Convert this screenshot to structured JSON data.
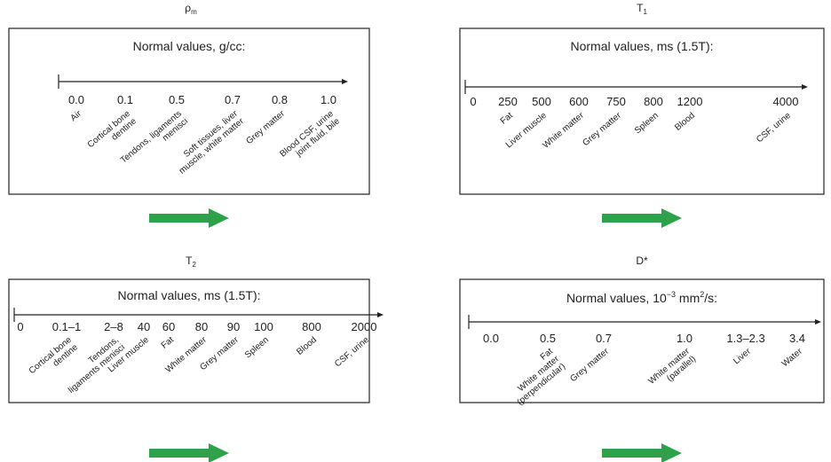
{
  "panels": [
    {
      "title": {
        "text": "ρ",
        "sub": "m"
      },
      "heading": [
        {
          "text": "Normal values, g/cc:"
        }
      ],
      "ticks": [
        {
          "value": "0.0",
          "label": [
            "Air"
          ]
        },
        {
          "value": "0.1",
          "label": [
            "Cortical bone",
            "dentine"
          ]
        },
        {
          "value": "0.5",
          "label": [
            "Tendons, ligaments",
            "menisci"
          ]
        },
        {
          "value": "0.7",
          "label": [
            "Soft tissues, liver",
            "muscle, white matter"
          ]
        },
        {
          "value": "0.8",
          "label": [
            "Grey matter"
          ]
        },
        {
          "value": "1.0",
          "label": [
            "Blood CSF, urine",
            "joint fluid, bile"
          ]
        }
      ]
    },
    {
      "title": {
        "text": "T",
        "sub": "1"
      },
      "heading": [
        {
          "text": "Normal values, ms (1.5T):"
        }
      ],
      "ticks": [
        {
          "value": "0"
        },
        {
          "value": "250",
          "label": [
            "Fat"
          ]
        },
        {
          "value": "500",
          "label": [
            "Liver muscle"
          ]
        },
        {
          "value": "600",
          "label": [
            "White matter"
          ]
        },
        {
          "value": "750",
          "label": [
            "Grey matter"
          ]
        },
        {
          "value": "800",
          "label": [
            "Spleen"
          ]
        },
        {
          "value": "1200",
          "label": [
            "Blood"
          ]
        },
        {
          "value": "4000",
          "label": [
            "CSF, urine"
          ]
        }
      ]
    },
    {
      "title": {
        "text": "T",
        "sub": "2"
      },
      "heading": [
        {
          "text": "Normal values, ms (1.5T):"
        }
      ],
      "ticks": [
        {
          "value": "0"
        },
        {
          "value": "0.1–1",
          "label": [
            "Cortical bone",
            "dentine"
          ]
        },
        {
          "value": "2–8",
          "label": [
            "Tendons,",
            "ligaments menisci"
          ]
        },
        {
          "value": "40",
          "label": [
            "Liver muscle"
          ]
        },
        {
          "value": "60",
          "label": [
            "Fat"
          ]
        },
        {
          "value": "80",
          "label": [
            "White matter"
          ]
        },
        {
          "value": "90",
          "label": [
            "Grey matter"
          ]
        },
        {
          "value": "100",
          "label": [
            "Spleen"
          ]
        },
        {
          "value": "800",
          "label": [
            "Blood"
          ]
        },
        {
          "value": "2000",
          "label": [
            "CSF, urine"
          ]
        }
      ]
    },
    {
      "title": {
        "text": "D*"
      },
      "heading": [
        {
          "text": "Normal values, 10"
        },
        {
          "text": "−3",
          "sup": true
        },
        {
          "text": " mm"
        },
        {
          "text": "2",
          "sup": true
        },
        {
          "text": "/s:"
        }
      ],
      "ticks": [
        {
          "value": "0.0"
        },
        {
          "value": "0.5",
          "label": [
            "Fat",
            "White matter",
            "(perpendicular)"
          ]
        },
        {
          "value": "0.7",
          "label": [
            "Grey matter"
          ]
        },
        {
          "value": "1.0",
          "label": [
            "White matter",
            "(parallel)"
          ]
        },
        {
          "value": "1.3–2.3",
          "label": [
            "Liver"
          ]
        },
        {
          "value": "3.4",
          "label": [
            "Water"
          ]
        }
      ]
    }
  ]
}
